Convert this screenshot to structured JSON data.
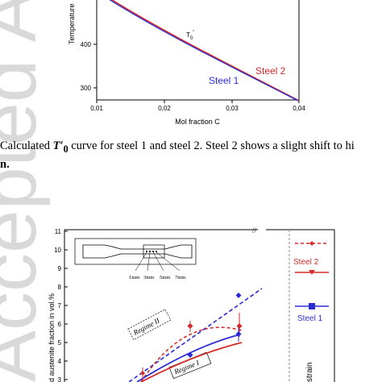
{
  "watermark": "Accepted Article",
  "figure1": {
    "ylabel": "Temperature",
    "xlabel": "Mol fraction C",
    "yticks": [
      "400",
      "300"
    ],
    "xticks": [
      "0,01",
      "0,02",
      "0,03",
      "0,04"
    ],
    "annotation": "T0'",
    "legend": [
      "Steel 1",
      "Steel 2"
    ],
    "colors": {
      "steel1": "#2b2bd6",
      "steel2": "#d62b2b"
    }
  },
  "caption": {
    "fragment_start": "Calculated ",
    "symbol": "T′",
    "subscript": "0",
    "text": " curve for steel 1 and steel 2. Steel 2 shows a slight shift to hi",
    "line2": "n."
  },
  "figure2": {
    "ylabel": "d austenite fraction in vol.%",
    "yticks": [
      "11",
      "10",
      "9",
      "8",
      "7",
      "6",
      "5",
      "4",
      "3"
    ],
    "inset_labels": [
      "1mm",
      "3mm",
      "5mm",
      "7mm"
    ],
    "regime2": "Regime II",
    "regime1": "Regime I",
    "legend_steel2": "Steel 2",
    "legend_steel1": "Steel 1",
    "side_label": "strain"
  },
  "chart_data": [
    {
      "type": "line",
      "xlabel": "Mol fraction C",
      "ylabel": "Temperature",
      "xlim": [
        0.01,
        0.04
      ],
      "series": [
        {
          "name": "Steel 1",
          "x": [
            0.0125,
            0.02,
            0.025,
            0.03,
            0.04
          ],
          "y": [
            495,
            440,
            400,
            355,
            275
          ]
        },
        {
          "name": "Steel 2",
          "x": [
            0.0125,
            0.02,
            0.025,
            0.03,
            0.04
          ],
          "y": [
            497,
            442,
            402,
            357,
            276
          ]
        }
      ]
    },
    {
      "type": "scatter",
      "ylabel": "d austenite fraction in vol.%",
      "ylim": [
        3,
        11
      ],
      "series": [
        {
          "name": "Steel 2",
          "values": [
            3.5,
            6.0,
            6.0
          ]
        },
        {
          "name": "Steel 1",
          "values": [
            3.0,
            4.4,
            5.6,
            7.6
          ]
        }
      ]
    }
  ]
}
